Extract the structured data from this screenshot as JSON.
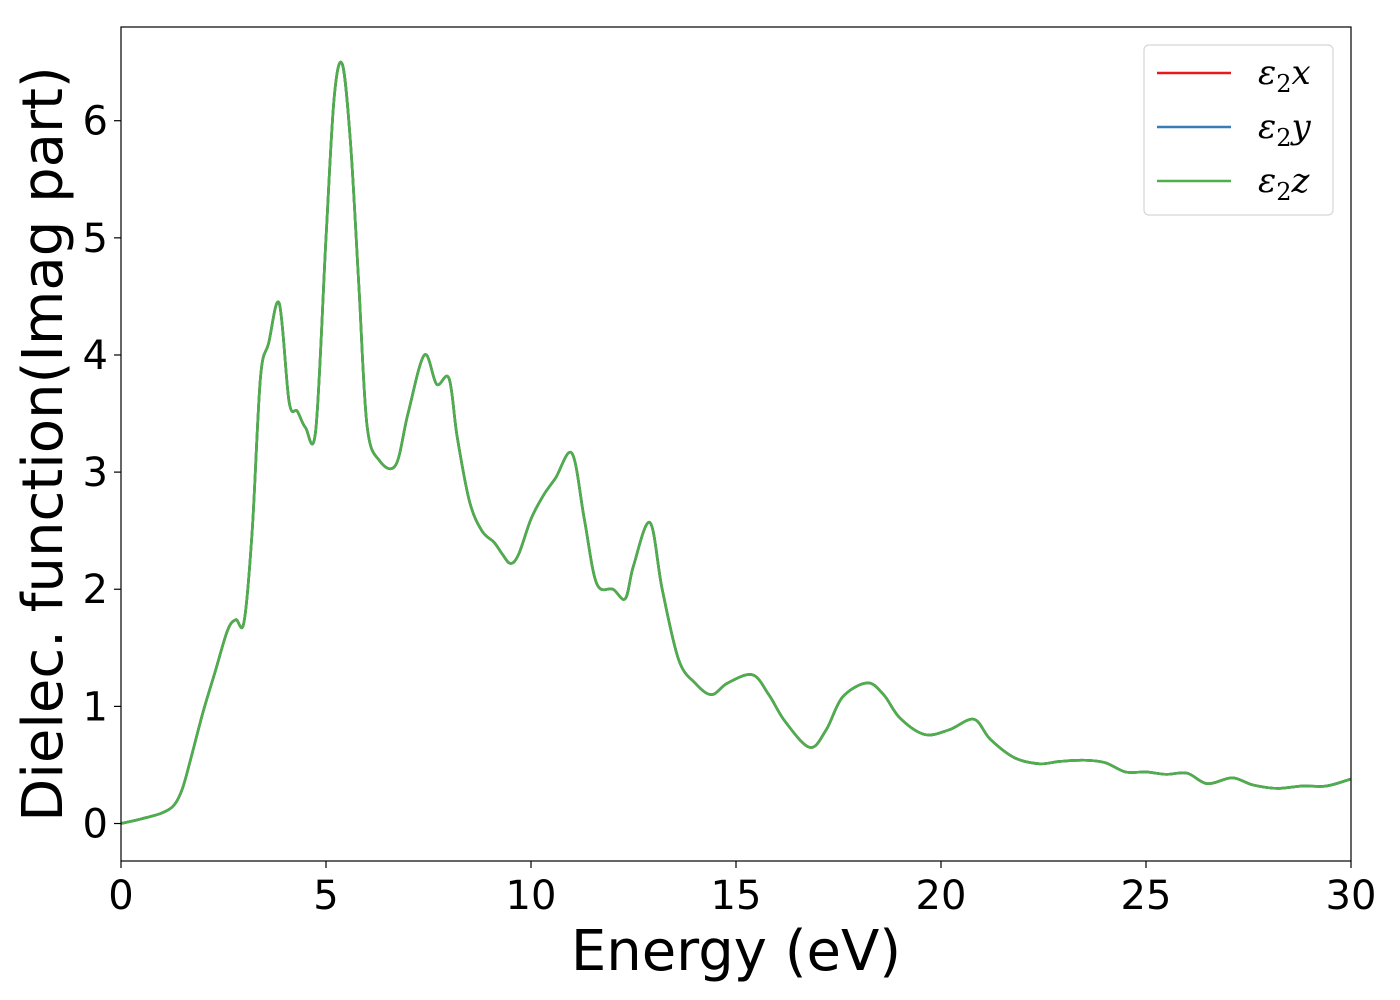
{
  "chart_data": {
    "type": "line",
    "xlabel": "Energy (eV)",
    "ylabel": "Dielec. function(Imag part)",
    "xlim": [
      0,
      30
    ],
    "ylim": [
      -0.32,
      6.8
    ],
    "xticks": [
      0,
      5,
      10,
      15,
      20,
      25,
      30
    ],
    "yticks": [
      0,
      1,
      2,
      3,
      4,
      5,
      6
    ],
    "xtick_labels": [
      "0",
      "5",
      "10",
      "15",
      "20",
      "25",
      "30"
    ],
    "ytick_labels": [
      "0",
      "1",
      "2",
      "3",
      "4",
      "5",
      "6"
    ],
    "grid": false,
    "legend_position": "top-right",
    "series": [
      {
        "name": "ε",
        "sub": "2",
        "suffix": "x",
        "color": "#e41a1c",
        "x": [
          0,
          0.5,
          1.0,
          1.3,
          1.5,
          1.7,
          2.0,
          2.3,
          2.6,
          2.8,
          3.0,
          3.2,
          3.4,
          3.6,
          3.86,
          4.1,
          4.3,
          4.5,
          4.75,
          5.0,
          5.2,
          5.4,
          5.6,
          5.8,
          6.0,
          6.3,
          6.7,
          7.0,
          7.4,
          7.7,
          8.0,
          8.2,
          8.5,
          8.8,
          9.1,
          9.3,
          9.5,
          9.7,
          10.0,
          10.3,
          10.6,
          11.0,
          11.3,
          11.6,
          12.0,
          12.3,
          12.5,
          12.9,
          13.2,
          13.6,
          14.0,
          14.4,
          14.8,
          15.4,
          15.8,
          16.2,
          16.8,
          17.2,
          17.6,
          18.2,
          18.6,
          19.0,
          19.6,
          20.2,
          20.8,
          21.2,
          21.8,
          22.4,
          22.9,
          23.5,
          24.0,
          24.5,
          25.0,
          25.5,
          26.0,
          26.5,
          27.1,
          27.6,
          28.2,
          28.8,
          29.4,
          30.0
        ],
        "y": [
          0.0,
          0.04,
          0.09,
          0.16,
          0.3,
          0.55,
          0.95,
          1.3,
          1.65,
          1.74,
          1.72,
          2.5,
          3.8,
          4.1,
          4.44,
          3.6,
          3.52,
          3.38,
          3.36,
          5.0,
          6.2,
          6.48,
          5.8,
          4.6,
          3.4,
          3.1,
          3.06,
          3.5,
          4.0,
          3.75,
          3.8,
          3.3,
          2.75,
          2.5,
          2.4,
          2.3,
          2.22,
          2.3,
          2.6,
          2.8,
          2.95,
          3.16,
          2.6,
          2.05,
          2.0,
          1.92,
          2.2,
          2.57,
          2.0,
          1.4,
          1.2,
          1.1,
          1.2,
          1.27,
          1.1,
          0.87,
          0.65,
          0.8,
          1.08,
          1.2,
          1.1,
          0.9,
          0.76,
          0.8,
          0.89,
          0.72,
          0.56,
          0.51,
          0.53,
          0.54,
          0.52,
          0.44,
          0.44,
          0.42,
          0.43,
          0.34,
          0.39,
          0.33,
          0.3,
          0.32,
          0.32,
          0.38
        ]
      },
      {
        "name": "ε",
        "sub": "2",
        "suffix": "y",
        "color": "#377eb8",
        "x": [
          0,
          0.5,
          1.0,
          1.3,
          1.5,
          1.7,
          2.0,
          2.3,
          2.6,
          2.8,
          3.0,
          3.2,
          3.4,
          3.6,
          3.86,
          4.1,
          4.3,
          4.5,
          4.75,
          5.0,
          5.2,
          5.4,
          5.6,
          5.8,
          6.0,
          6.3,
          6.7,
          7.0,
          7.4,
          7.7,
          8.0,
          8.2,
          8.5,
          8.8,
          9.1,
          9.3,
          9.5,
          9.7,
          10.0,
          10.3,
          10.6,
          11.0,
          11.3,
          11.6,
          12.0,
          12.3,
          12.5,
          12.9,
          13.2,
          13.6,
          14.0,
          14.4,
          14.8,
          15.4,
          15.8,
          16.2,
          16.8,
          17.2,
          17.6,
          18.2,
          18.6,
          19.0,
          19.6,
          20.2,
          20.8,
          21.2,
          21.8,
          22.4,
          22.9,
          23.5,
          24.0,
          24.5,
          25.0,
          25.5,
          26.0,
          26.5,
          27.1,
          27.6,
          28.2,
          28.8,
          29.4,
          30.0
        ],
        "y": [
          0.0,
          0.04,
          0.09,
          0.16,
          0.3,
          0.55,
          0.95,
          1.3,
          1.65,
          1.74,
          1.72,
          2.5,
          3.8,
          4.1,
          4.44,
          3.6,
          3.52,
          3.38,
          3.36,
          5.0,
          6.2,
          6.48,
          5.8,
          4.6,
          3.4,
          3.1,
          3.06,
          3.5,
          4.0,
          3.75,
          3.8,
          3.3,
          2.75,
          2.5,
          2.4,
          2.3,
          2.22,
          2.3,
          2.6,
          2.8,
          2.95,
          3.16,
          2.6,
          2.05,
          2.0,
          1.92,
          2.2,
          2.57,
          2.0,
          1.4,
          1.2,
          1.1,
          1.2,
          1.27,
          1.1,
          0.87,
          0.65,
          0.8,
          1.08,
          1.2,
          1.1,
          0.9,
          0.76,
          0.8,
          0.89,
          0.72,
          0.56,
          0.51,
          0.53,
          0.54,
          0.52,
          0.44,
          0.44,
          0.42,
          0.43,
          0.34,
          0.39,
          0.33,
          0.3,
          0.32,
          0.32,
          0.38
        ]
      },
      {
        "name": "ε",
        "sub": "2",
        "suffix": "z",
        "color": "#4daf4a",
        "x": [
          0,
          0.5,
          1.0,
          1.3,
          1.5,
          1.7,
          2.0,
          2.3,
          2.6,
          2.8,
          3.0,
          3.2,
          3.4,
          3.6,
          3.86,
          4.1,
          4.3,
          4.5,
          4.75,
          5.0,
          5.2,
          5.4,
          5.6,
          5.8,
          6.0,
          6.3,
          6.7,
          7.0,
          7.4,
          7.7,
          8.0,
          8.2,
          8.5,
          8.8,
          9.1,
          9.3,
          9.5,
          9.7,
          10.0,
          10.3,
          10.6,
          11.0,
          11.3,
          11.6,
          12.0,
          12.3,
          12.5,
          12.9,
          13.2,
          13.6,
          14.0,
          14.4,
          14.8,
          15.4,
          15.8,
          16.2,
          16.8,
          17.2,
          17.6,
          18.2,
          18.6,
          19.0,
          19.6,
          20.2,
          20.8,
          21.2,
          21.8,
          22.4,
          22.9,
          23.5,
          24.0,
          24.5,
          25.0,
          25.5,
          26.0,
          26.5,
          27.1,
          27.6,
          28.2,
          28.8,
          29.4,
          30.0
        ],
        "y": [
          0.0,
          0.04,
          0.09,
          0.16,
          0.3,
          0.55,
          0.95,
          1.3,
          1.65,
          1.74,
          1.72,
          2.5,
          3.8,
          4.1,
          4.44,
          3.6,
          3.52,
          3.38,
          3.36,
          5.0,
          6.2,
          6.48,
          5.8,
          4.6,
          3.4,
          3.1,
          3.06,
          3.5,
          4.0,
          3.75,
          3.8,
          3.3,
          2.75,
          2.5,
          2.4,
          2.3,
          2.22,
          2.3,
          2.6,
          2.8,
          2.95,
          3.16,
          2.6,
          2.05,
          2.0,
          1.92,
          2.2,
          2.57,
          2.0,
          1.4,
          1.2,
          1.1,
          1.2,
          1.27,
          1.1,
          0.87,
          0.65,
          0.8,
          1.08,
          1.2,
          1.1,
          0.9,
          0.76,
          0.8,
          0.89,
          0.72,
          0.56,
          0.51,
          0.53,
          0.54,
          0.52,
          0.44,
          0.44,
          0.42,
          0.43,
          0.34,
          0.39,
          0.33,
          0.3,
          0.32,
          0.32,
          0.38
        ]
      }
    ]
  }
}
